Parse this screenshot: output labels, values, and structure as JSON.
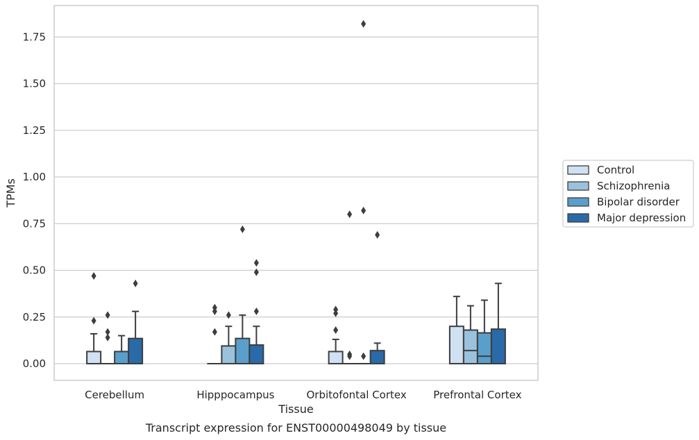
{
  "chart_data": {
    "type": "box",
    "xlabel": "Tissue",
    "ylabel": "TPMs",
    "caption": "Transcript expression for ENST00000498049 by tissue",
    "categories": [
      "Cerebellum",
      "Hipppocampus",
      "Orbitofontal Cortex",
      "Prefrontal Cortex"
    ],
    "ylim": [
      -0.09,
      1.91
    ],
    "yticks": [
      0.0,
      0.25,
      0.5,
      0.75,
      1.0,
      1.25,
      1.5,
      1.75
    ],
    "ytick_labels": [
      "0.00",
      "0.25",
      "0.50",
      "0.75",
      "1.00",
      "1.25",
      "1.50",
      "1.75"
    ],
    "grid": "horizontal",
    "legend_position": "right",
    "series": [
      {
        "name": "Control",
        "color": "#d0e1f2",
        "boxes": [
          {
            "q1": 0.0,
            "median": 0.0,
            "q3": 0.065,
            "whislo": 0.0,
            "whishi": 0.16,
            "fliers": [
              0.23,
              0.47
            ]
          },
          {
            "q1": 0.0,
            "median": 0.0,
            "q3": 0.0,
            "whislo": 0.0,
            "whishi": 0.0,
            "fliers": [
              0.17,
              0.28,
              0.3
            ]
          },
          {
            "q1": 0.0,
            "median": 0.0,
            "q3": 0.065,
            "whislo": 0.0,
            "whishi": 0.13,
            "fliers": [
              0.18,
              0.27,
              0.29
            ]
          },
          {
            "q1": 0.0,
            "median": 0.0,
            "q3": 0.2,
            "whislo": 0.0,
            "whishi": 0.36,
            "fliers": []
          }
        ]
      },
      {
        "name": "Schizophrenia",
        "color": "#9ac2dd",
        "boxes": [
          {
            "q1": 0.0,
            "median": 0.0,
            "q3": 0.0,
            "whislo": 0.0,
            "whishi": 0.0,
            "fliers": [
              0.14,
              0.17,
              0.26
            ]
          },
          {
            "q1": 0.0,
            "median": 0.0,
            "q3": 0.095,
            "whislo": 0.0,
            "whishi": 0.2,
            "fliers": [
              0.26
            ]
          },
          {
            "q1": 0.0,
            "median": 0.0,
            "q3": 0.0,
            "whislo": 0.0,
            "whishi": 0.0,
            "fliers": [
              0.04,
              0.05,
              0.8
            ]
          },
          {
            "q1": 0.0,
            "median": 0.07,
            "q3": 0.18,
            "whislo": 0.0,
            "whishi": 0.31,
            "fliers": []
          }
        ]
      },
      {
        "name": "Bipolar disorder",
        "color": "#5a9fcc",
        "boxes": [
          {
            "q1": 0.0,
            "median": 0.0,
            "q3": 0.065,
            "whislo": 0.0,
            "whishi": 0.15,
            "fliers": []
          },
          {
            "q1": 0.0,
            "median": 0.0,
            "q3": 0.135,
            "whislo": 0.0,
            "whishi": 0.26,
            "fliers": [
              0.72
            ]
          },
          {
            "q1": 0.0,
            "median": 0.0,
            "q3": 0.0,
            "whislo": 0.0,
            "whishi": 0.0,
            "fliers": [
              0.04,
              0.82,
              1.82
            ]
          },
          {
            "q1": 0.0,
            "median": 0.04,
            "q3": 0.165,
            "whislo": 0.0,
            "whishi": 0.34,
            "fliers": []
          }
        ]
      },
      {
        "name": "Major depression",
        "color": "#2a6aa8",
        "boxes": [
          {
            "q1": 0.0,
            "median": 0.0,
            "q3": 0.135,
            "whislo": 0.0,
            "whishi": 0.28,
            "fliers": [
              0.43
            ]
          },
          {
            "q1": 0.0,
            "median": 0.0,
            "q3": 0.1,
            "whislo": 0.0,
            "whishi": 0.2,
            "fliers": [
              0.28,
              0.49,
              0.54
            ]
          },
          {
            "q1": 0.0,
            "median": 0.0,
            "q3": 0.07,
            "whislo": 0.0,
            "whishi": 0.11,
            "fliers": [
              0.69
            ]
          },
          {
            "q1": 0.0,
            "median": 0.0,
            "q3": 0.185,
            "whislo": 0.0,
            "whishi": 0.43,
            "fliers": []
          }
        ]
      }
    ]
  }
}
